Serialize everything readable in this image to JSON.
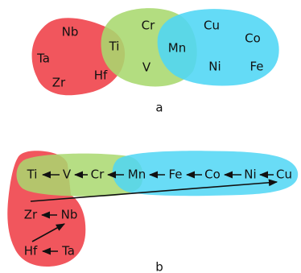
{
  "panel_a": {
    "label": "a",
    "groups": [
      {
        "color": "#f0484f"
      },
      {
        "color": "#a9d86e"
      },
      {
        "color": "#4fd6f5"
      }
    ],
    "elements": {
      "nb": "Nb",
      "ta": "Ta",
      "zr": "Zr",
      "hf": "Hf",
      "ti": "Ti",
      "cr": "Cr",
      "v": "V",
      "mn": "Mn",
      "cu": "Cu",
      "co": "Co",
      "ni": "Ni",
      "fe": "Fe"
    }
  },
  "panel_b": {
    "label": "b",
    "elements": {
      "ti": "Ti",
      "v": "V",
      "cr": "Cr",
      "mn": "Mn",
      "fe": "Fe",
      "co": "Co",
      "ni": "Ni",
      "cu": "Cu",
      "zr": "Zr",
      "nb": "Nb",
      "hf": "Hf",
      "ta": "Ta"
    }
  }
}
